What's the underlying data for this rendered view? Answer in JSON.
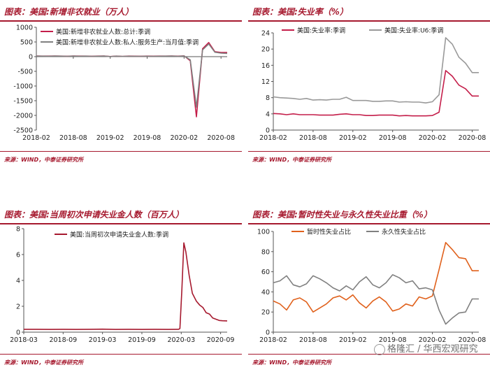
{
  "watermark": {
    "text": "格隆汇 / 华西宏观研究"
  },
  "panels": [
    {
      "title": "图表：美国:新增非农就业（万人）",
      "source": "来源：WIND，中泰证券研究所",
      "chart_data": {
        "type": "line",
        "ylim": [
          -2500,
          1000
        ],
        "yticks": [
          -2500,
          -2000,
          -1500,
          -1000,
          -500,
          0,
          500,
          1000
        ],
        "xlim": [
          0,
          31
        ],
        "xticks": [
          {
            "v": 0,
            "label": "2018-02"
          },
          {
            "v": 6,
            "label": "2018-08"
          },
          {
            "v": 12,
            "label": "2019-02"
          },
          {
            "v": 18,
            "label": "2019-08"
          },
          {
            "v": 24,
            "label": "2020-02"
          },
          {
            "v": 30,
            "label": "2020-08"
          }
        ],
        "legend": "top-left",
        "series": [
          {
            "name": "美国:新增非农就业人数:总计:季调",
            "color": "#c41e4a",
            "x": [
              0,
              1,
              2,
              3,
              4,
              5,
              6,
              7,
              8,
              9,
              10,
              11,
              12,
              13,
              14,
              15,
              16,
              17,
              18,
              19,
              20,
              21,
              22,
              23,
              24,
              25,
              26,
              27,
              28,
              29,
              30,
              31
            ],
            "y": [
              25,
              20,
              18,
              22,
              20,
              15,
              22,
              18,
              20,
              15,
              18,
              22,
              5,
              20,
              8,
              18,
              16,
              14,
              18,
              16,
              18,
              20,
              24,
              16,
              27,
              -140,
              -2050,
              270,
              480,
              170,
              140,
              140
            ]
          },
          {
            "name": "美国:新增非农就业人数:私人:服务生产:当月值:季调",
            "color": "#808080",
            "x": [
              0,
              1,
              2,
              3,
              4,
              5,
              6,
              7,
              8,
              9,
              10,
              11,
              12,
              13,
              14,
              15,
              16,
              17,
              18,
              19,
              20,
              21,
              22,
              23,
              24,
              25,
              26,
              27,
              28,
              29,
              30,
              31
            ],
            "y": [
              20,
              16,
              14,
              18,
              16,
              12,
              18,
              15,
              16,
              12,
              15,
              18,
              3,
              16,
              6,
              15,
              13,
              12,
              15,
              13,
              15,
              16,
              20,
              13,
              22,
              -110,
              -1720,
              230,
              430,
              150,
              120,
              110
            ]
          }
        ]
      }
    },
    {
      "title": "图表：美国:失业率（%）",
      "source": "来源：WIND，中泰证券研究所",
      "chart_data": {
        "type": "line",
        "ylim": [
          0,
          24
        ],
        "yticks": [
          0,
          4,
          8,
          12,
          16,
          20,
          24
        ],
        "xlim": [
          0,
          31
        ],
        "xticks": [
          {
            "v": 0,
            "label": "2018-02"
          },
          {
            "v": 6,
            "label": "2018-08"
          },
          {
            "v": 12,
            "label": "2019-02"
          },
          {
            "v": 18,
            "label": "2019-08"
          },
          {
            "v": 24,
            "label": "2020-02"
          },
          {
            "v": 30,
            "label": "2020-08"
          }
        ],
        "legend": "top-left",
        "series": [
          {
            "name": "美国:失业率:季调",
            "color": "#c41e4a",
            "x": [
              0,
              1,
              2,
              3,
              4,
              5,
              6,
              7,
              8,
              9,
              10,
              11,
              12,
              13,
              14,
              15,
              16,
              17,
              18,
              19,
              20,
              21,
              22,
              23,
              24,
              25,
              26,
              27,
              28,
              29,
              30,
              31
            ],
            "y": [
              4.1,
              4.0,
              3.8,
              4.0,
              3.8,
              3.8,
              3.8,
              3.7,
              3.7,
              3.7,
              3.9,
              4.0,
              3.8,
              3.8,
              3.6,
              3.6,
              3.7,
              3.7,
              3.7,
              3.5,
              3.6,
              3.5,
              3.5,
              3.5,
              3.6,
              4.4,
              14.7,
              13.3,
              11.1,
              10.2,
              8.4,
              8.4
            ]
          },
          {
            "name": "美国:失业率:U6:季调",
            "color": "#999999",
            "x": [
              0,
              1,
              2,
              3,
              4,
              5,
              6,
              7,
              8,
              9,
              10,
              11,
              12,
              13,
              14,
              15,
              16,
              17,
              18,
              19,
              20,
              21,
              22,
              23,
              24,
              25,
              26,
              27,
              28,
              29,
              30,
              31
            ],
            "y": [
              8.2,
              8.0,
              7.9,
              7.8,
              7.6,
              7.8,
              7.4,
              7.5,
              7.4,
              7.6,
              7.6,
              8.1,
              7.3,
              7.3,
              7.3,
              7.1,
              7.1,
              7.2,
              7.2,
              6.9,
              7.0,
              6.9,
              6.9,
              6.7,
              7.0,
              8.7,
              22.8,
              21.2,
              18.0,
              16.5,
              14.2,
              14.2
            ]
          }
        ]
      }
    },
    {
      "title": "图表：美国:当周初次申请失业金人数（百万人）",
      "source": "来源：WIND，中泰证券研究所",
      "chart_data": {
        "type": "line",
        "ylim": [
          0,
          8
        ],
        "yticks": [
          0,
          2,
          4,
          6,
          8
        ],
        "xlim": [
          0,
          31
        ],
        "xticks": [
          {
            "v": 0,
            "label": "2018-03"
          },
          {
            "v": 6,
            "label": "2018-09"
          },
          {
            "v": 12,
            "label": "2019-03"
          },
          {
            "v": 18,
            "label": "2019-09"
          },
          {
            "v": 24,
            "label": "2020-03"
          },
          {
            "v": 30,
            "label": "2020-09"
          }
        ],
        "legend": "top-left",
        "series": [
          {
            "name": "美国:当周初次申请失业金人数:季调",
            "color": "#a6192e",
            "x": [
              0,
              2,
              4,
              6,
              8,
              10,
              12,
              14,
              16,
              18,
              20,
              22,
              23.6,
              23.8,
              24.1,
              24.4,
              24.7,
              25.2,
              25.7,
              26.3,
              26.8,
              27.3,
              27.8,
              28.3,
              28.8,
              29.3,
              29.8,
              30.3,
              31
            ],
            "y": [
              0.22,
              0.22,
              0.21,
              0.22,
              0.21,
              0.22,
              0.23,
              0.21,
              0.22,
              0.21,
              0.22,
              0.21,
              0.22,
              0.28,
              3.3,
              6.9,
              6.2,
              4.4,
              3.0,
              2.4,
              2.1,
              1.9,
              1.5,
              1.4,
              1.1,
              1.0,
              0.9,
              0.88,
              0.87
            ]
          }
        ]
      }
    },
    {
      "title": "图表：美国:暂时性失业与永久性失业比重（%）",
      "source": "来源：WIND，中泰证券研究所",
      "chart_data": {
        "type": "line",
        "ylim": [
          0,
          100
        ],
        "yticks": [
          0,
          20,
          40,
          60,
          80,
          100
        ],
        "xlim": [
          0,
          31
        ],
        "xticks": [
          {
            "v": 0,
            "label": "2018-02"
          },
          {
            "v": 6,
            "label": "2018-08"
          },
          {
            "v": 12,
            "label": "2019-02"
          },
          {
            "v": 18,
            "label": "2019-08"
          },
          {
            "v": 24,
            "label": "2020-02"
          },
          {
            "v": 30,
            "label": "2020-08"
          }
        ],
        "legend": "top",
        "series": [
          {
            "name": "暂时性失业占比",
            "color": "#e0611c",
            "x": [
              0,
              1,
              2,
              3,
              4,
              5,
              6,
              7,
              8,
              9,
              10,
              11,
              12,
              13,
              14,
              15,
              16,
              17,
              18,
              19,
              20,
              21,
              22,
              23,
              24,
              25,
              26,
              27,
              28,
              29,
              30,
              31
            ],
            "y": [
              31,
              28,
              22,
              32,
              34,
              30,
              20,
              24,
              28,
              34,
              36,
              32,
              37,
              29,
              24,
              31,
              35,
              30,
              21,
              23,
              28,
              26,
              35,
              33,
              36,
              62,
              89,
              82,
              74,
              73,
              61,
              61
            ]
          },
          {
            "name": "永久性失业占比",
            "color": "#808080",
            "x": [
              0,
              1,
              2,
              3,
              4,
              5,
              6,
              7,
              8,
              9,
              10,
              11,
              12,
              13,
              14,
              15,
              16,
              17,
              18,
              19,
              20,
              21,
              22,
              23,
              24,
              25,
              26,
              27,
              28,
              29,
              30,
              31
            ],
            "y": [
              49,
              51,
              56,
              47,
              45,
              48,
              56,
              53,
              49,
              44,
              41,
              46,
              42,
              50,
              55,
              47,
              44,
              49,
              57,
              54,
              49,
              51,
              43,
              44,
              42,
              22,
              8,
              14,
              19,
              20,
              33,
              33
            ]
          }
        ]
      }
    }
  ]
}
